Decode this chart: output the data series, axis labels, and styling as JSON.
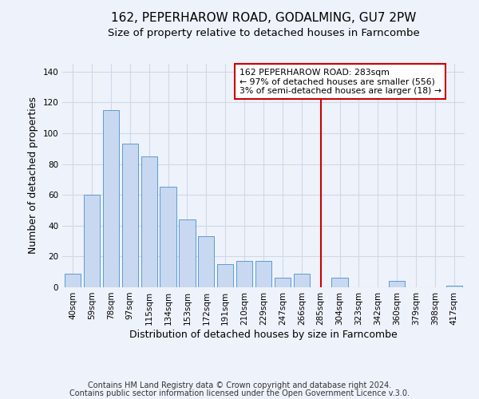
{
  "title": "162, PEPERHAROW ROAD, GODALMING, GU7 2PW",
  "subtitle": "Size of property relative to detached houses in Farncombe",
  "xlabel": "Distribution of detached houses by size in Farncombe",
  "ylabel": "Number of detached properties",
  "bar_labels": [
    "40sqm",
    "59sqm",
    "78sqm",
    "97sqm",
    "115sqm",
    "134sqm",
    "153sqm",
    "172sqm",
    "191sqm",
    "210sqm",
    "229sqm",
    "247sqm",
    "266sqm",
    "285sqm",
    "304sqm",
    "323sqm",
    "342sqm",
    "360sqm",
    "379sqm",
    "398sqm",
    "417sqm"
  ],
  "bar_values": [
    9,
    60,
    115,
    93,
    85,
    65,
    44,
    33,
    15,
    17,
    17,
    6,
    9,
    0,
    6,
    0,
    0,
    4,
    0,
    0,
    1
  ],
  "bar_color": "#c8d8f0",
  "bar_edge_color": "#5b9bd5",
  "vline_x_index": 13,
  "vline_color": "#cc0000",
  "ylim": [
    0,
    145
  ],
  "yticks": [
    0,
    20,
    40,
    60,
    80,
    100,
    120,
    140
  ],
  "annotation_title": "162 PEPERHAROW ROAD: 283sqm",
  "annotation_line1": "← 97% of detached houses are smaller (556)",
  "annotation_line2": "3% of semi-detached houses are larger (18) →",
  "annotation_box_color": "#ffffff",
  "annotation_box_edge": "#cc0000",
  "footer1": "Contains HM Land Registry data © Crown copyright and database right 2024.",
  "footer2": "Contains public sector information licensed under the Open Government Licence v.3.0.",
  "background_color": "#eef2fa",
  "grid_color": "#d0d8e8",
  "title_fontsize": 11,
  "subtitle_fontsize": 9.5,
  "axis_label_fontsize": 9,
  "tick_fontsize": 7.5,
  "annotation_fontsize": 7.8,
  "footer_fontsize": 7
}
